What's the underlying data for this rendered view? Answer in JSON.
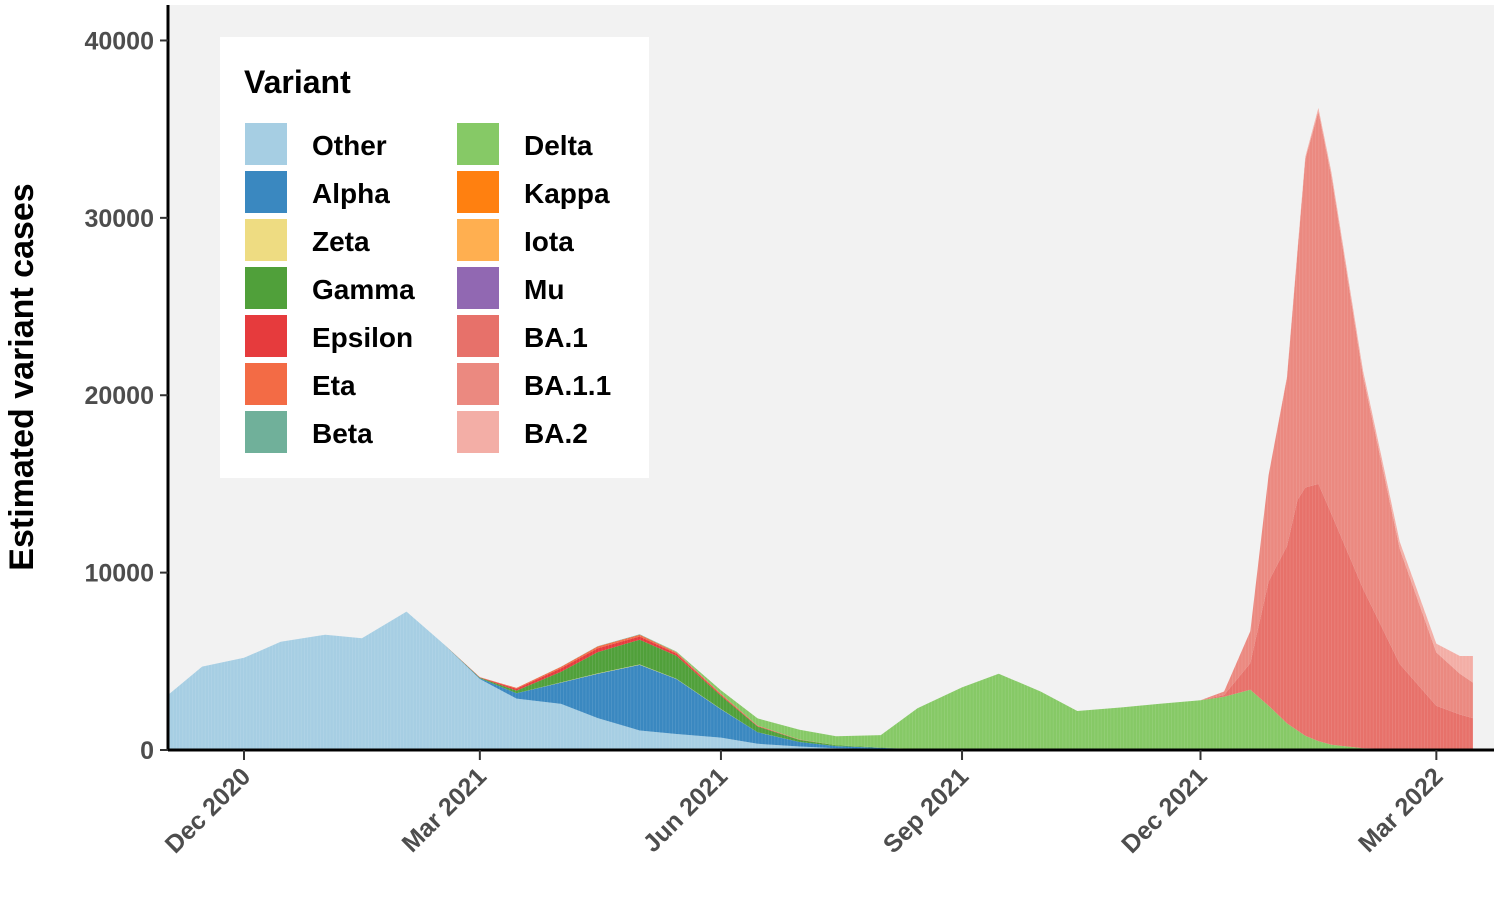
{
  "chart_data": {
    "type": "area",
    "stacked": true,
    "ylabel": "Estimated variant cases",
    "xlabel": "",
    "ylim": [
      0,
      42000
    ],
    "xlim": [
      "2020-11-02",
      "2022-03-23"
    ],
    "yticks": [
      0,
      10000,
      20000,
      30000,
      40000
    ],
    "xticks": [
      {
        "date": "2020-12-01",
        "label": "Dec 2020"
      },
      {
        "date": "2021-03-01",
        "label": "Mar 2021"
      },
      {
        "date": "2021-06-01",
        "label": "Jun 2021"
      },
      {
        "date": "2021-09-01",
        "label": "Sep 2021"
      },
      {
        "date": "2021-12-01",
        "label": "Dec 2021"
      },
      {
        "date": "2022-03-01",
        "label": "Mar 2022"
      }
    ],
    "grid": false,
    "legend": {
      "title": "Variant",
      "placement": "top-left",
      "columns": 2
    },
    "x": [
      "2020-11-02",
      "2020-11-15",
      "2020-12-01",
      "2020-12-15",
      "2021-01-01",
      "2021-01-15",
      "2021-02-01",
      "2021-02-15",
      "2021-03-01",
      "2021-03-15",
      "2021-04-01",
      "2021-04-15",
      "2021-05-01",
      "2021-05-15",
      "2021-06-01",
      "2021-06-15",
      "2021-07-01",
      "2021-07-15",
      "2021-08-01",
      "2021-08-15",
      "2021-09-01",
      "2021-09-15",
      "2021-10-01",
      "2021-10-15",
      "2021-11-01",
      "2021-11-15",
      "2021-12-01",
      "2021-12-10",
      "2021-12-20",
      "2021-12-27",
      "2022-01-03",
      "2022-01-07",
      "2022-01-10",
      "2022-01-15",
      "2022-01-20",
      "2022-02-01",
      "2022-02-15",
      "2022-03-01",
      "2022-03-10",
      "2022-03-15"
    ],
    "series": [
      {
        "name": "Other",
        "color": "#a6cee3",
        "values": [
          3100,
          4700,
          5200,
          6100,
          6500,
          6300,
          7800,
          6000,
          4000,
          2900,
          2600,
          1800,
          1100,
          900,
          700,
          350,
          200,
          100,
          60,
          30,
          20,
          0,
          0,
          0,
          0,
          0,
          0,
          0,
          0,
          0,
          0,
          0,
          0,
          0,
          0,
          0,
          0,
          0,
          0,
          0
        ]
      },
      {
        "name": "Alpha",
        "color": "#3a88c0",
        "values": [
          0,
          0,
          0,
          0,
          0,
          0,
          0,
          0,
          50,
          300,
          1200,
          2500,
          3700,
          3100,
          1600,
          650,
          250,
          120,
          60,
          20,
          10,
          0,
          0,
          0,
          0,
          0,
          0,
          0,
          0,
          0,
          0,
          0,
          0,
          0,
          0,
          0,
          0,
          0,
          0,
          0
        ]
      },
      {
        "name": "Zeta",
        "color": "#eedc82",
        "values": [
          0,
          0,
          0,
          0,
          0,
          0,
          0,
          0,
          0,
          0,
          10,
          20,
          20,
          15,
          10,
          5,
          0,
          0,
          0,
          0,
          0,
          0,
          0,
          0,
          0,
          0,
          0,
          0,
          0,
          0,
          0,
          0,
          0,
          0,
          0,
          0,
          0,
          0,
          0,
          0
        ]
      },
      {
        "name": "Gamma",
        "color": "#50a03a",
        "values": [
          0,
          0,
          0,
          0,
          0,
          0,
          0,
          0,
          30,
          150,
          600,
          1200,
          1400,
          1300,
          750,
          320,
          120,
          50,
          20,
          0,
          0,
          0,
          0,
          0,
          0,
          0,
          0,
          0,
          0,
          0,
          0,
          0,
          0,
          0,
          0,
          0,
          0,
          0,
          0,
          0
        ]
      },
      {
        "name": "Epsilon",
        "color": "#e63b3d",
        "values": [
          0,
          0,
          0,
          0,
          0,
          0,
          0,
          0,
          20,
          100,
          200,
          220,
          180,
          120,
          60,
          30,
          10,
          0,
          0,
          0,
          0,
          0,
          0,
          0,
          0,
          0,
          0,
          0,
          0,
          0,
          0,
          0,
          0,
          0,
          0,
          0,
          0,
          0,
          0,
          0
        ]
      },
      {
        "name": "Eta",
        "color": "#f36b45",
        "values": [
          0,
          0,
          0,
          0,
          0,
          0,
          0,
          0,
          10,
          50,
          80,
          100,
          100,
          70,
          40,
          20,
          10,
          0,
          0,
          0,
          0,
          0,
          0,
          0,
          0,
          0,
          0,
          0,
          0,
          0,
          0,
          0,
          0,
          0,
          0,
          0,
          0,
          0,
          0,
          0
        ]
      },
      {
        "name": "Beta",
        "color": "#70b09a",
        "values": [
          0,
          0,
          0,
          0,
          0,
          0,
          0,
          0,
          0,
          0,
          10,
          20,
          20,
          20,
          10,
          5,
          0,
          0,
          0,
          0,
          0,
          0,
          0,
          0,
          0,
          0,
          0,
          0,
          0,
          0,
          0,
          0,
          0,
          0,
          0,
          0,
          0,
          0,
          0,
          0
        ]
      },
      {
        "name": "Delta",
        "color": "#86c966",
        "values": [
          0,
          0,
          0,
          0,
          0,
          0,
          0,
          0,
          0,
          0,
          0,
          0,
          0,
          30,
          200,
          400,
          550,
          500,
          700,
          2300,
          3500,
          4300,
          3300,
          2200,
          2400,
          2600,
          2800,
          3000,
          3400,
          2500,
          1500,
          1100,
          800,
          500,
          300,
          100,
          50,
          0,
          0,
          0
        ]
      },
      {
        "name": "Kappa",
        "color": "#ff8010",
        "values": [
          0,
          0,
          0,
          0,
          0,
          0,
          0,
          0,
          0,
          0,
          0,
          0,
          0,
          0,
          0,
          0,
          0,
          0,
          0,
          0,
          0,
          0,
          0,
          0,
          0,
          0,
          0,
          0,
          0,
          0,
          0,
          0,
          0,
          0,
          0,
          0,
          0,
          0,
          0,
          0
        ]
      },
      {
        "name": "Iota",
        "color": "#ffaf50",
        "values": [
          0,
          0,
          0,
          0,
          0,
          0,
          0,
          0,
          0,
          0,
          0,
          0,
          0,
          0,
          0,
          0,
          0,
          0,
          0,
          0,
          0,
          0,
          0,
          0,
          0,
          0,
          0,
          0,
          0,
          0,
          0,
          0,
          0,
          0,
          0,
          0,
          0,
          0,
          0,
          0
        ]
      },
      {
        "name": "Mu",
        "color": "#9168b2",
        "values": [
          0,
          0,
          0,
          0,
          0,
          0,
          0,
          0,
          0,
          0,
          0,
          0,
          0,
          0,
          0,
          0,
          0,
          0,
          0,
          0,
          0,
          0,
          0,
          0,
          0,
          0,
          0,
          0,
          0,
          0,
          0,
          0,
          0,
          0,
          0,
          0,
          0,
          0,
          0,
          0
        ]
      },
      {
        "name": "BA.1",
        "color": "#e7716a",
        "values": [
          0,
          0,
          0,
          0,
          0,
          0,
          0,
          0,
          0,
          0,
          0,
          0,
          0,
          0,
          0,
          0,
          0,
          0,
          0,
          0,
          0,
          0,
          0,
          0,
          0,
          0,
          0,
          100,
          1500,
          7000,
          10000,
          13000,
          14000,
          14500,
          13000,
          9000,
          4800,
          2500,
          2000,
          1800
        ]
      },
      {
        "name": "BA.1.1",
        "color": "#eb8980",
        "values": [
          0,
          0,
          0,
          0,
          0,
          0,
          0,
          0,
          0,
          0,
          0,
          0,
          0,
          0,
          0,
          0,
          0,
          0,
          0,
          0,
          0,
          0,
          0,
          0,
          0,
          0,
          0,
          200,
          1800,
          6000,
          9500,
          14000,
          18500,
          21000,
          19000,
          12000,
          6500,
          3000,
          2300,
          2000
        ]
      },
      {
        "name": "BA.2",
        "color": "#f3aea6",
        "values": [
          0,
          0,
          0,
          0,
          0,
          0,
          0,
          0,
          0,
          0,
          0,
          0,
          0,
          0,
          0,
          0,
          0,
          0,
          0,
          0,
          0,
          0,
          0,
          0,
          0,
          0,
          0,
          0,
          0,
          0,
          50,
          100,
          150,
          200,
          250,
          300,
          400,
          500,
          1000,
          1500
        ]
      }
    ]
  }
}
